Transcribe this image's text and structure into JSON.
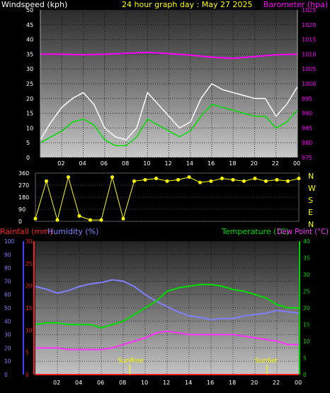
{
  "chart_data": [
    {
      "type": "line",
      "title": "24 hour graph day : May 27 2025",
      "left_label": "Windspeed (kph)",
      "right_label": "Barometer (hpa)",
      "x_ticks": [
        "02",
        "04",
        "06",
        "08",
        "10",
        "12",
        "14",
        "16",
        "18",
        "20",
        "22",
        "00"
      ],
      "x_range": [
        0,
        24
      ],
      "y_left_ticks": [
        "0",
        "5",
        "10",
        "15",
        "20",
        "25",
        "30",
        "35",
        "40",
        "45",
        "50"
      ],
      "y_left_range": [
        0,
        50
      ],
      "y_right_ticks": [
        "975",
        "980",
        "985",
        "990",
        "995",
        "1000",
        "1005",
        "1010",
        "1015",
        "1020",
        "1025"
      ],
      "y_right_range": [
        975,
        1025
      ],
      "series": [
        {
          "color": "#ffffff",
          "x": [
            0,
            1,
            2,
            3,
            4,
            5,
            6,
            7,
            8,
            9,
            10,
            11,
            12,
            13,
            14,
            15,
            16,
            17,
            18,
            19,
            20,
            21,
            22,
            23,
            24
          ],
          "y": [
            6,
            12,
            17,
            20,
            22,
            18,
            10,
            7,
            6,
            10,
            22,
            18,
            14,
            10,
            12,
            20,
            25,
            23,
            22,
            21,
            20,
            20,
            14,
            18,
            24
          ]
        },
        {
          "color": "#00dd00",
          "x": [
            0,
            1,
            2,
            3,
            4,
            5,
            6,
            7,
            8,
            9,
            10,
            11,
            12,
            13,
            14,
            15,
            16,
            17,
            18,
            19,
            20,
            21,
            22,
            23,
            24
          ],
          "y": [
            5,
            7,
            9,
            12,
            13,
            11,
            6,
            4,
            4,
            7,
            13,
            11,
            9,
            7,
            9,
            14,
            18,
            17,
            16,
            15,
            14,
            14,
            10,
            12,
            16
          ]
        },
        {
          "color": "#ff00ff",
          "x": [
            0,
            2,
            4,
            6,
            8,
            10,
            12,
            14,
            16,
            18,
            20,
            22,
            24
          ],
          "y": [
            1010,
            1010,
            1009.8,
            1010,
            1010.3,
            1010.6,
            1010.2,
            1009.7,
            1009,
            1008.6,
            1009.2,
            1009.8,
            1010
          ]
        }
      ]
    },
    {
      "type": "scatter",
      "left_ticks": [
        "360",
        "270",
        "180",
        "90",
        "0"
      ],
      "right_labels": [
        "N",
        "W",
        "S",
        "E",
        "N"
      ],
      "x_range": [
        0,
        24
      ],
      "y_range": [
        0,
        360
      ],
      "series": [
        {
          "color": "#ffff00",
          "x": [
            0,
            1,
            2,
            3,
            4,
            5,
            6,
            7,
            8,
            9,
            10,
            11,
            12,
            13,
            14,
            15,
            16,
            17,
            18,
            19,
            20,
            21,
            22,
            23,
            24
          ],
          "y": [
            20,
            300,
            10,
            330,
            40,
            10,
            10,
            330,
            20,
            300,
            310,
            320,
            300,
            310,
            330,
            290,
            300,
            320,
            310,
            300,
            320,
            300,
            310,
            300,
            320
          ]
        }
      ]
    },
    {
      "type": "line",
      "left_label_rain": "Rainfall (mm)",
      "left_label_humidity": "Humidity (%)",
      "right_label_temp": "Temperature (°C)",
      "right_label_dew": "Dew Point (°C)",
      "x_ticks": [
        "02",
        "04",
        "06",
        "08",
        "10",
        "12",
        "14",
        "16",
        "18",
        "20",
        "22",
        "00"
      ],
      "x_range": [
        0,
        24
      ],
      "humidity_ticks": [
        "0",
        "10",
        "20",
        "30",
        "40",
        "50",
        "60",
        "70",
        "80",
        "90",
        "100"
      ],
      "humidity_range": [
        0,
        100
      ],
      "rain_ticks": [
        "0",
        "5",
        "10",
        "15",
        "20",
        "25",
        "30"
      ],
      "rain_range": [
        0,
        30
      ],
      "temp_ticks": [
        "0",
        "5",
        "10",
        "15",
        "20",
        "25",
        "30",
        "35",
        "40"
      ],
      "temp_range": [
        0,
        40
      ],
      "annotations": [
        {
          "text": "SunRise",
          "x": 8.6
        },
        {
          "text": "SunSet",
          "x": 21.1
        }
      ],
      "series": [
        {
          "name": "Humidity (%)",
          "color": "#8080ff",
          "axis": "humidity",
          "x": [
            0,
            1,
            2,
            3,
            4,
            5,
            6,
            7,
            8,
            9,
            10,
            11,
            12,
            13,
            14,
            15,
            16,
            17,
            18,
            19,
            20,
            21,
            22,
            23,
            24
          ],
          "y": [
            66,
            64,
            61,
            63,
            66,
            68,
            69,
            71,
            70,
            66,
            60,
            55,
            51,
            47,
            44,
            43,
            41,
            42,
            42,
            44,
            45,
            46,
            48,
            47,
            46
          ]
        },
        {
          "name": "Temperature (°C)",
          "color": "#00dd00",
          "axis": "temp",
          "x": [
            0,
            1,
            2,
            3,
            4,
            5,
            6,
            7,
            8,
            9,
            10,
            11,
            12,
            13,
            14,
            15,
            16,
            17,
            18,
            19,
            20,
            21,
            22,
            23,
            24
          ],
          "y": [
            15,
            15.5,
            15.5,
            15,
            15,
            15,
            14,
            15,
            16,
            18,
            20,
            22,
            25,
            26,
            26.5,
            27,
            27,
            26.5,
            25.5,
            25,
            24,
            23,
            21,
            20,
            20
          ]
        },
        {
          "name": "Dew Point (°C)",
          "color": "#ff33ff",
          "axis": "temp",
          "x": [
            0,
            1,
            2,
            3,
            4,
            5,
            6,
            7,
            8,
            9,
            10,
            11,
            12,
            13,
            14,
            15,
            16,
            17,
            18,
            19,
            20,
            21,
            22,
            23,
            24
          ],
          "y": [
            8,
            8,
            8,
            7.5,
            7.5,
            7.5,
            7.5,
            8,
            9,
            10,
            11,
            12.5,
            13,
            12.5,
            12,
            12,
            12,
            12,
            12,
            11.5,
            11,
            10.5,
            10,
            9,
            9
          ]
        },
        {
          "name": "Rainfall (mm)",
          "color": "#ff2020",
          "axis": "rain",
          "x": [
            0,
            24
          ],
          "y": [
            0,
            0
          ]
        }
      ]
    }
  ]
}
